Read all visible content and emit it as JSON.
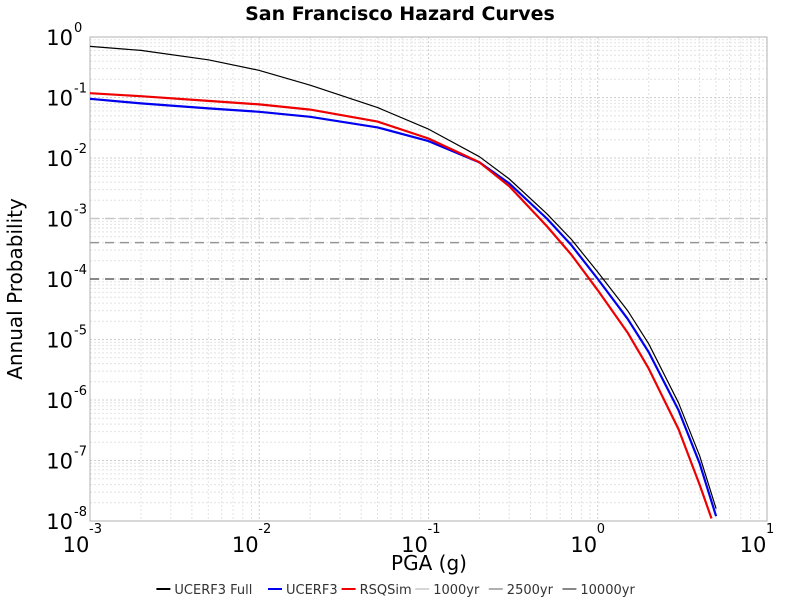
{
  "chart_data": {
    "type": "line",
    "title": "San Francisco Hazard Curves",
    "xlabel": "PGA (g)",
    "ylabel": "Annual Probability",
    "xscale": "log",
    "yscale": "log",
    "xlim": [
      0.001,
      10
    ],
    "ylim": [
      1e-08,
      1
    ],
    "grid": true,
    "legend_position": "bottom",
    "x_ticks": [
      {
        "base": "10",
        "exp": "-3"
      },
      {
        "base": "10",
        "exp": "-2"
      },
      {
        "base": "10",
        "exp": "-1"
      },
      {
        "base": "10",
        "exp": "0"
      },
      {
        "base": "10",
        "exp": "1"
      }
    ],
    "y_ticks": [
      {
        "base": "10",
        "exp": "0"
      },
      {
        "base": "10",
        "exp": "-1"
      },
      {
        "base": "10",
        "exp": "-2"
      },
      {
        "base": "10",
        "exp": "-3"
      },
      {
        "base": "10",
        "exp": "-4"
      },
      {
        "base": "10",
        "exp": "-5"
      },
      {
        "base": "10",
        "exp": "-6"
      },
      {
        "base": "10",
        "exp": "-7"
      },
      {
        "base": "10",
        "exp": "-8"
      }
    ],
    "series": [
      {
        "name": "UCERF3 Full",
        "color": "#000000",
        "style": "solid",
        "x": [
          0.001,
          0.002,
          0.005,
          0.01,
          0.02,
          0.05,
          0.1,
          0.2,
          0.3,
          0.5,
          0.7,
          1.0,
          1.5,
          2.0,
          3.0,
          4.0,
          5.0
        ],
        "y": [
          0.7,
          0.6,
          0.42,
          0.28,
          0.16,
          0.068,
          0.03,
          0.0105,
          0.0045,
          0.0012,
          0.00045,
          0.00013,
          3e-05,
          8.5e-06,
          9e-07,
          1.2e-07,
          1.6e-08
        ]
      },
      {
        "name": "UCERF3",
        "color": "#0000ee",
        "style": "solid",
        "x": [
          0.001,
          0.002,
          0.005,
          0.01,
          0.02,
          0.05,
          0.1,
          0.2,
          0.3,
          0.5,
          0.7,
          1.0,
          1.5,
          2.0,
          3.0,
          4.0,
          5.0
        ],
        "y": [
          0.095,
          0.08,
          0.066,
          0.058,
          0.048,
          0.032,
          0.019,
          0.0085,
          0.0038,
          0.001,
          0.00036,
          0.0001,
          2.2e-05,
          6.2e-06,
          6.8e-07,
          9e-08,
          1.2e-08
        ]
      },
      {
        "name": "RSQSim",
        "color": "#ee0000",
        "style": "solid",
        "x": [
          0.001,
          0.002,
          0.005,
          0.01,
          0.02,
          0.05,
          0.1,
          0.2,
          0.3,
          0.5,
          0.7,
          1.0,
          1.5,
          2.0,
          3.0,
          4.0,
          4.7
        ],
        "y": [
          0.118,
          0.105,
          0.088,
          0.077,
          0.063,
          0.04,
          0.021,
          0.0085,
          0.0034,
          0.00075,
          0.00025,
          6.5e-05,
          1.3e-05,
          3.3e-06,
          3.3e-07,
          4e-08,
          1.1e-08
        ]
      },
      {
        "name": "1000yr",
        "color": "#c8c8c8",
        "style": "dashed",
        "x": [
          0.001,
          10
        ],
        "y": [
          0.001,
          0.001
        ]
      },
      {
        "name": "2500yr",
        "color": "#969696",
        "style": "dashed",
        "x": [
          0.001,
          10
        ],
        "y": [
          0.0004,
          0.0004
        ]
      },
      {
        "name": "10000yr",
        "color": "#606060",
        "style": "dashed",
        "x": [
          0.001,
          10
        ],
        "y": [
          0.0001,
          0.0001
        ]
      }
    ]
  }
}
